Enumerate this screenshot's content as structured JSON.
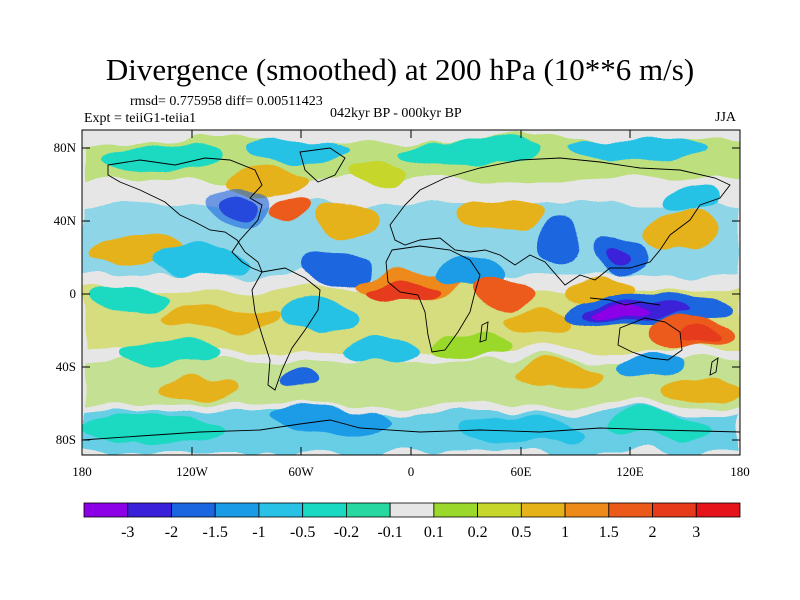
{
  "title": "Divergence (smoothed) at 200 hPa (10**6 m/s)",
  "stats_line": "rmsd= 0.775958 diff= 0.00511423",
  "experiment": "Expt = teiiG1-teiia1",
  "period": "042kyr BP - 000kyr BP",
  "season": "JJA",
  "lat_ticks": [
    "80N",
    "40N",
    "0",
    "40S",
    "80S"
  ],
  "lon_ticks": [
    "180",
    "120W",
    "60W",
    "0",
    "60E",
    "120E",
    "180"
  ],
  "colorbar": {
    "labels": [
      "-3",
      "-2",
      "-1.5",
      "-1",
      "-0.5",
      "-0.2",
      "-0.1",
      "0.1",
      "0.2",
      "0.5",
      "1",
      "1.5",
      "2",
      "3"
    ],
    "colors": [
      "#8b00e6",
      "#3b20d9",
      "#1a66e0",
      "#1a9be6",
      "#27c2e6",
      "#1ad9c2",
      "#27d9a0",
      "#e6e6e6",
      "#9ad92b",
      "#c7d62b",
      "#e6b21a",
      "#ee8a1a",
      "#ec5a1a",
      "#e63a1a",
      "#e6141a"
    ]
  }
}
